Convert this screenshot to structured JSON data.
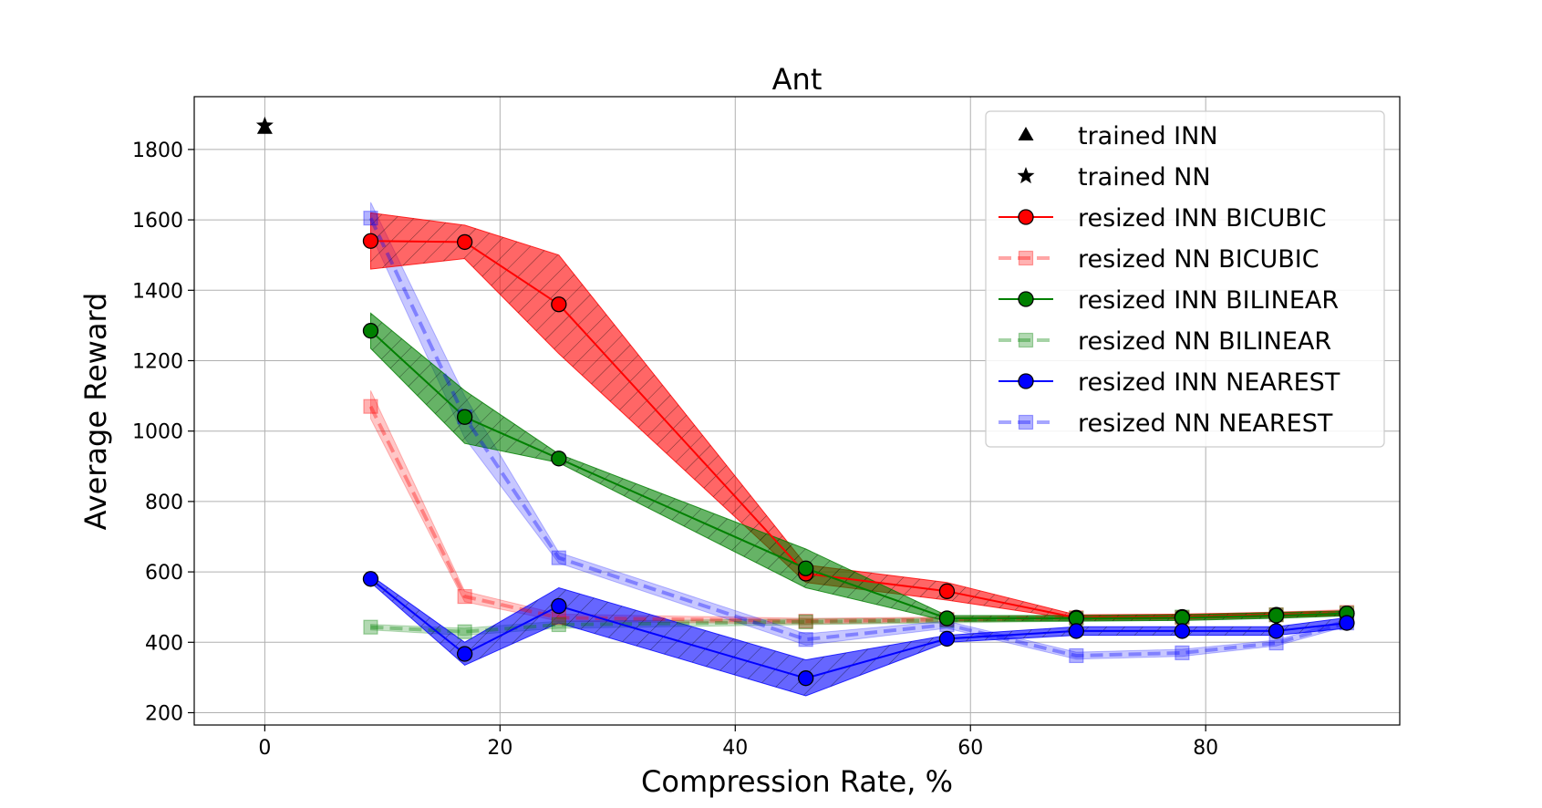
{
  "chart_data": {
    "type": "line",
    "title": "Ant",
    "xlabel": "Compression Rate, %",
    "ylabel": "Average Reward",
    "xlim": [
      -6,
      96.5
    ],
    "ylim": [
      165,
      1950
    ],
    "x_ticks": [
      0,
      20,
      40,
      60,
      80
    ],
    "y_ticks": [
      200,
      400,
      600,
      800,
      1000,
      1200,
      1400,
      1600,
      1800
    ],
    "grid": true,
    "legend_position": "top-right",
    "markers": [
      {
        "name": "trained INN",
        "marker": "triangle",
        "x": 0,
        "y": 1860,
        "color": "#000000"
      },
      {
        "name": "trained NN",
        "marker": "star",
        "x": 0,
        "y": 1868,
        "color": "#000000"
      }
    ],
    "series": [
      {
        "name": "resized NN BICUBIC",
        "color": "#ff0000",
        "marker": "square",
        "dashed": true,
        "faded": true,
        "x": [
          9,
          17,
          25,
          46,
          58,
          69,
          78,
          86,
          92
        ],
        "y": [
          1070,
          530,
          470,
          460,
          465,
          470,
          470,
          478,
          485
        ],
        "band_low": [
          1035,
          515,
          460,
          452,
          458,
          462,
          462,
          470,
          477
        ],
        "band_high": [
          1115,
          545,
          480,
          468,
          472,
          478,
          478,
          486,
          493
        ]
      },
      {
        "name": "resized NN BILINEAR",
        "color": "#008000",
        "marker": "square",
        "dashed": true,
        "faded": true,
        "x": [
          9,
          17,
          25,
          46,
          58,
          69,
          78,
          86,
          92
        ],
        "y": [
          443,
          430,
          450,
          458,
          462,
          468,
          472,
          478,
          483
        ],
        "band_low": [
          435,
          420,
          440,
          450,
          455,
          460,
          465,
          470,
          476
        ],
        "band_high": [
          451,
          440,
          460,
          466,
          469,
          476,
          479,
          486,
          490
        ]
      },
      {
        "name": "resized NN NEAREST",
        "color": "#0000ff",
        "marker": "square",
        "dashed": true,
        "faded": true,
        "x": [
          9,
          17,
          25,
          46,
          58,
          69,
          78,
          86,
          92
        ],
        "y": [
          1605,
          1040,
          640,
          408,
          450,
          362,
          370,
          398,
          455
        ],
        "band_low": [
          1560,
          980,
          625,
          392,
          440,
          352,
          360,
          390,
          445
        ],
        "band_high": [
          1650,
          1100,
          655,
          424,
          460,
          372,
          380,
          406,
          465
        ]
      },
      {
        "name": "resized INN BICUBIC",
        "color": "#ff0000",
        "marker": "circle",
        "dashed": false,
        "faded": false,
        "x": [
          9,
          17,
          25,
          46,
          58,
          69,
          78,
          86,
          92
        ],
        "y": [
          1540,
          1537,
          1360,
          595,
          545,
          470,
          472,
          478,
          482
        ],
        "band_low": [
          1460,
          1490,
          1220,
          570,
          520,
          465,
          467,
          473,
          477
        ],
        "band_high": [
          1620,
          1585,
          1500,
          620,
          570,
          478,
          480,
          485,
          490
        ]
      },
      {
        "name": "resized INN BILINEAR",
        "color": "#008000",
        "marker": "circle",
        "dashed": false,
        "faded": false,
        "x": [
          9,
          17,
          25,
          46,
          58,
          69,
          78,
          86,
          92
        ],
        "y": [
          1285,
          1040,
          922,
          610,
          468,
          468,
          470,
          476,
          482
        ],
        "band_low": [
          1235,
          965,
          910,
          555,
          460,
          460,
          462,
          468,
          475
        ],
        "band_high": [
          1335,
          1115,
          935,
          665,
          476,
          476,
          478,
          484,
          489
        ]
      },
      {
        "name": "resized INN NEAREST",
        "color": "#0000ff",
        "marker": "circle",
        "dashed": false,
        "faded": false,
        "x": [
          9,
          17,
          25,
          46,
          58,
          69,
          78,
          86,
          92
        ],
        "y": [
          580,
          367,
          503,
          298,
          410,
          432,
          432,
          432,
          455
        ],
        "band_low": [
          570,
          335,
          455,
          248,
          400,
          420,
          420,
          420,
          440
        ],
        "band_high": [
          590,
          400,
          555,
          350,
          420,
          444,
          444,
          444,
          470
        ]
      }
    ],
    "legend_order": [
      "trained INN",
      "trained NN",
      "resized INN BICUBIC",
      "resized NN BICUBIC",
      "resized INN BILINEAR",
      "resized NN BILINEAR",
      "resized INN NEAREST",
      "resized NN NEAREST"
    ]
  }
}
